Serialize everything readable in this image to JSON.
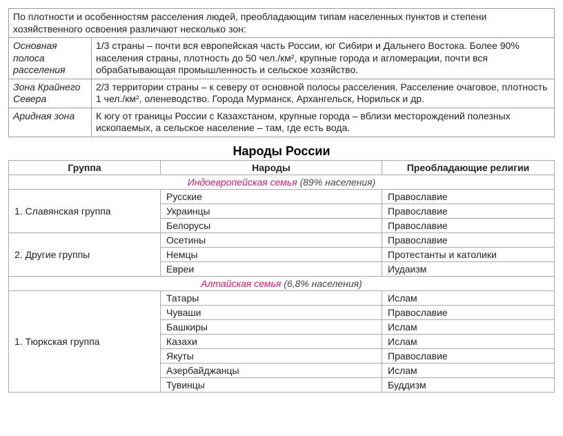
{
  "zones": {
    "intro": "По плотности и особенностям расселения людей, преобладающим типам населенных пунктов и степени хозяйственного освоения различают несколько зон:",
    "rows": [
      {
        "name": "Основная полоса расселения",
        "desc": "1/3 страны – почти вся европейская часть России, юг Сибири и Дальнего Востока. Более 90% населения страны, плотность до 50 чел./км², крупные города и агломерации, почти вся обрабатывающая промышленность и сельское хозяйство."
      },
      {
        "name": "Зона Крайнего Севера",
        "desc": "2/3 территории страны – к северу от основной полосы расселения. Расселение очаговое, плотность 1 чел./км², оленеводство. Города Мурманск, Архангельск, Норильск и др."
      },
      {
        "name": "Аридная зона",
        "desc": "К югу от границы России с Казахстаном, крупные города – вблизи месторождений полезных ископаемых, а сельское население – там, где есть вода."
      }
    ]
  },
  "peoples": {
    "title": "Народы России",
    "headers": {
      "group": "Группа",
      "people": "Народы",
      "religion": "Преобладающие религии"
    },
    "families": [
      {
        "name": "Индоевропейская семья",
        "pct": " (89% населения)",
        "groups": [
          {
            "group": "1. Славянская группа",
            "rows": [
              {
                "people": "Русские",
                "religion": "Православие"
              },
              {
                "people": "Украинцы",
                "religion": "Православие"
              },
              {
                "people": "Белорусы",
                "religion": "Православие"
              }
            ]
          },
          {
            "group": "2. Другие группы",
            "rows": [
              {
                "people": "Осетины",
                "religion": "Православие"
              },
              {
                "people": "Немцы",
                "religion": "Протестанты и католики"
              },
              {
                "people": "Евреи",
                "religion": "Иудаизм"
              }
            ]
          }
        ]
      },
      {
        "name": "Алтайская семья",
        "pct": " (6,8% населения)",
        "groups": [
          {
            "group": "1. Тюркская группа",
            "rows": [
              {
                "people": "Татары",
                "religion": "Ислам"
              },
              {
                "people": "Чуваши",
                "religion": "Православие"
              },
              {
                "people": "Башкиры",
                "religion": "Ислам"
              },
              {
                "people": "Казахи",
                "religion": "Ислам"
              },
              {
                "people": "Якуты",
                "religion": "Православие"
              },
              {
                "people": "Азербайджанцы",
                "religion": "Ислам"
              },
              {
                "people": "Тувинцы",
                "religion": "Буддизм"
              }
            ]
          }
        ]
      }
    ]
  },
  "colors": {
    "accent": "#c02070",
    "border": "#999999",
    "text": "#222222"
  }
}
